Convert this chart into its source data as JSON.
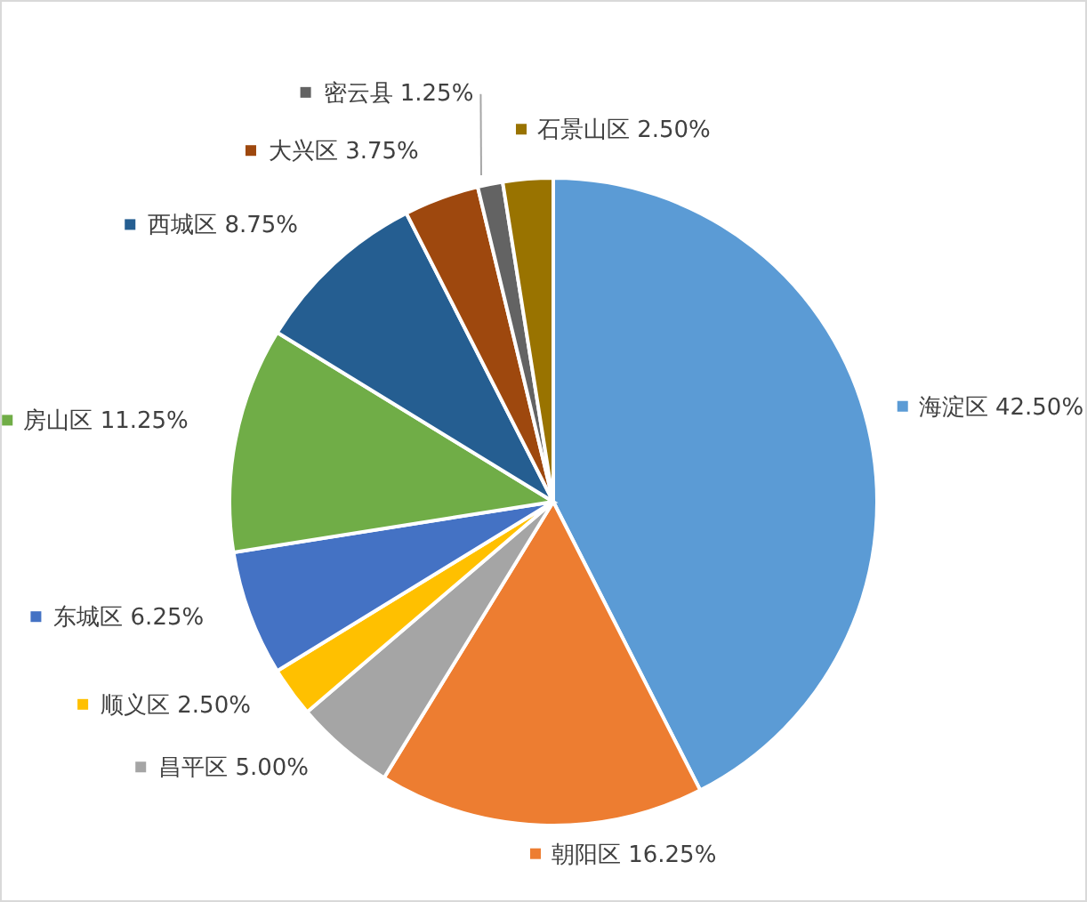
{
  "chart_data": {
    "type": "pie",
    "categories": [
      "海淀区",
      "朝阳区",
      "昌平区",
      "顺义区",
      "东城区",
      "房山区",
      "西城区",
      "大兴区",
      "密云县",
      "石景山区"
    ],
    "values": [
      42.5,
      16.25,
      5.0,
      2.5,
      6.25,
      11.25,
      8.75,
      3.75,
      1.25,
      2.5
    ],
    "value_labels": [
      "42.50%",
      "16.25%",
      "5.00%",
      "2.50%",
      "6.25%",
      "11.25%",
      "8.75%",
      "3.75%",
      "1.25%",
      "2.50%"
    ],
    "legend": "right",
    "colors": [
      "#5b9bd5",
      "#ed7d31",
      "#a5a5a5",
      "#ffc000",
      "#4472c4",
      "#70ad47",
      "#255e91",
      "#9e480e",
      "#636363",
      "#997300"
    ]
  }
}
